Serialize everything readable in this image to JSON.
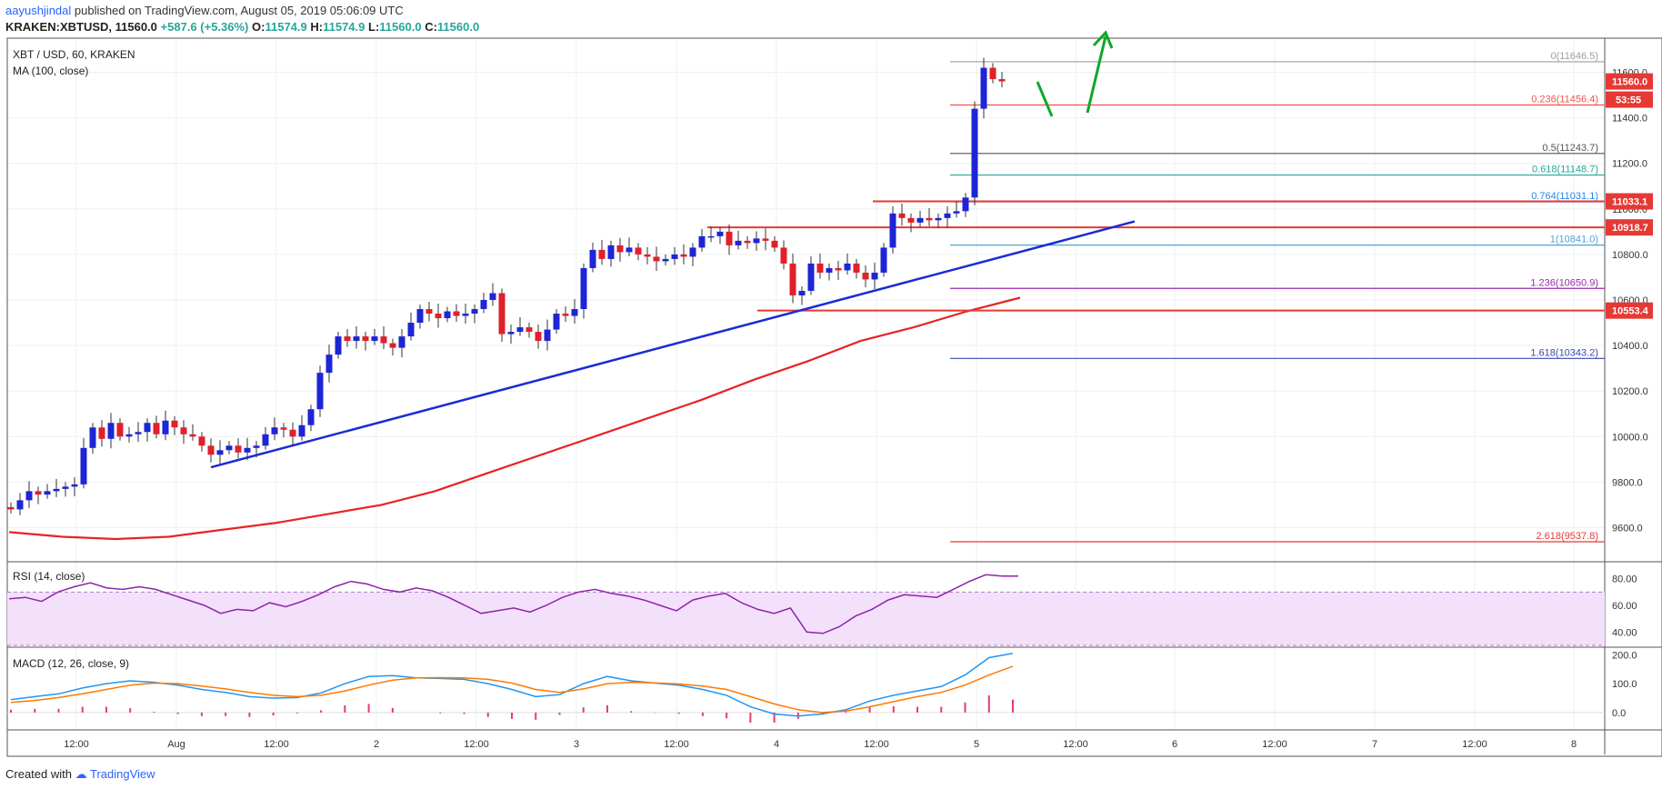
{
  "header": {
    "user": "aayushjindal",
    "published_text": "published on TradingView.com, August 05, 2019 05:06:09 UTC",
    "symbol": "KRAKEN:XBTUSD,",
    "last": "11560.0",
    "change": "+587.6 (+5.36%)",
    "o_label": "O:",
    "o": "11574.9",
    "h_label": "H:",
    "h": "11574.9",
    "l_label": "L:",
    "l": "11560.0",
    "c_label": "C:",
    "c": "11560.0"
  },
  "footer": {
    "created_with": "Created with",
    "brand": "TradingView"
  },
  "chart_data": [
    {
      "type": "candlestick",
      "title": "XBT / USD, 60, KRAKEN",
      "indicator": "MA (100, close)",
      "ylim": [
        9450,
        11750
      ],
      "y_ticks": [
        9600,
        9800,
        10000,
        10200,
        10400,
        10600,
        10800,
        11000,
        11200,
        11400,
        11600
      ],
      "x_ticks": [
        "12:00",
        "Aug",
        "12:00",
        "2",
        "12:00",
        "3",
        "12:00",
        "4",
        "12:00",
        "5",
        "12:00",
        "6",
        "12:00",
        "7",
        "12:00",
        "8"
      ],
      "ohlc_close": [
        9680,
        9720,
        9760,
        9745,
        9760,
        9770,
        9780,
        9790,
        9950,
        10040,
        9990,
        10060,
        10000,
        10010,
        10020,
        10060,
        10010,
        10070,
        10040,
        10010,
        10000,
        9960,
        9920,
        9940,
        9960,
        9930,
        9950,
        9960,
        10010,
        10040,
        10030,
        10000,
        10050,
        10120,
        10280,
        10360,
        10440,
        10420,
        10440,
        10420,
        10440,
        10410,
        10390,
        10440,
        10500,
        10560,
        10540,
        10520,
        10550,
        10530,
        10540,
        10560,
        10600,
        10630,
        10450,
        10460,
        10480,
        10460,
        10420,
        10470,
        10540,
        10530,
        10560,
        10740,
        10820,
        10780,
        10840,
        10810,
        10830,
        10800,
        10790,
        10770,
        10780,
        10800,
        10790,
        10830,
        10880,
        10880,
        10900,
        10840,
        10860,
        10850,
        10870,
        10860,
        10830,
        10760,
        10620,
        10640,
        10760,
        10720,
        10740,
        10730,
        10760,
        10720,
        10690,
        10720,
        10830,
        10980,
        10960,
        10940,
        10960,
        10950,
        10960,
        10980,
        10990,
        11050,
        11440,
        11620,
        11570,
        11560
      ],
      "ma100": [
        9580,
        9560,
        9550,
        9560,
        9590,
        9620,
        9660,
        9700,
        9760,
        9840,
        9920,
        10000,
        10080,
        10160,
        10250,
        10330,
        10420,
        10480,
        10550,
        10610
      ],
      "current_price": "11560.0",
      "countdown": "53:55",
      "price_labels": [
        "11033.1",
        "10918.7",
        "10553.4"
      ],
      "fib_levels": [
        {
          "label": "0(11646.5)",
          "value": 11646.5,
          "color": "#9e9e9e"
        },
        {
          "label": "0.236(11456.4)",
          "value": 11456.4,
          "color": "#ef5350"
        },
        {
          "label": "0.5(11243.7)",
          "value": 11243.7,
          "color": "#555555"
        },
        {
          "label": "0.618(11148.7)",
          "value": 11148.7,
          "color": "#26a69a"
        },
        {
          "label": "0.764(11031.1)",
          "value": 11031.1,
          "color": "#1e88e5"
        },
        {
          "label": "1(10841.0)",
          "value": 10841.0,
          "color": "#4fa3d1"
        },
        {
          "label": "1.236(10650.9)",
          "value": 10650.9,
          "color": "#9c27b0"
        },
        {
          "label": "1.618(10343.2)",
          "value": 10343.2,
          "color": "#3949ab"
        },
        {
          "label": "2.618(9537.8)",
          "value": 9537.8,
          "color": "#e53935"
        }
      ],
      "horizontal_levels": [
        11033.1,
        10918.7,
        10553.4
      ],
      "trendline": {
        "from_value": 9865,
        "to_value": 10945
      }
    },
    {
      "type": "line",
      "title": "RSI (14, close)",
      "ylim": [
        30,
        90
      ],
      "y_ticks": [
        "80.00",
        "60.00",
        "40.00"
      ],
      "band": [
        30,
        70
      ],
      "values": [
        65,
        66,
        63,
        70,
        74,
        77,
        73,
        72,
        74,
        72,
        68,
        64,
        60,
        54,
        57,
        56,
        62,
        59,
        63,
        68,
        74,
        78,
        76,
        72,
        70,
        73,
        71,
        66,
        60,
        54,
        56,
        58,
        55,
        60,
        66,
        70,
        72,
        69,
        67,
        64,
        60,
        56,
        64,
        67,
        69,
        62,
        57,
        54,
        58,
        40,
        39,
        44,
        52,
        57,
        64,
        68,
        67,
        66,
        72,
        78,
        83,
        82,
        82
      ]
    },
    {
      "type": "line",
      "title": "MACD (12, 26, close, 9)",
      "ylim": [
        -60,
        220
      ],
      "y_ticks": [
        "200.0",
        "100.0",
        "0.0"
      ],
      "macd": [
        45,
        55,
        65,
        85,
        100,
        110,
        105,
        95,
        80,
        70,
        55,
        50,
        52,
        68,
        100,
        125,
        128,
        120,
        118,
        115,
        100,
        80,
        55,
        62,
        100,
        125,
        110,
        102,
        95,
        80,
        60,
        20,
        -5,
        -12,
        -5,
        10,
        40,
        60,
        75,
        90,
        130,
        190,
        205
      ],
      "signal": [
        35,
        42,
        52,
        65,
        80,
        95,
        102,
        100,
        92,
        82,
        70,
        60,
        55,
        60,
        75,
        95,
        112,
        120,
        121,
        120,
        115,
        102,
        80,
        70,
        82,
        100,
        105,
        103,
        99,
        92,
        80,
        55,
        30,
        10,
        0,
        5,
        20,
        38,
        55,
        70,
        95,
        130,
        160
      ],
      "histogram": [
        10,
        13,
        13,
        20,
        20,
        15,
        3,
        -5,
        -12,
        -12,
        -15,
        -10,
        -3,
        8,
        25,
        30,
        16,
        0,
        -3,
        -5,
        -15,
        -22,
        -25,
        -8,
        18,
        25,
        5,
        -1,
        -4,
        -12,
        -20,
        -35,
        -35,
        -22,
        -5,
        5,
        20,
        22,
        20,
        20,
        35,
        60,
        45
      ]
    }
  ]
}
